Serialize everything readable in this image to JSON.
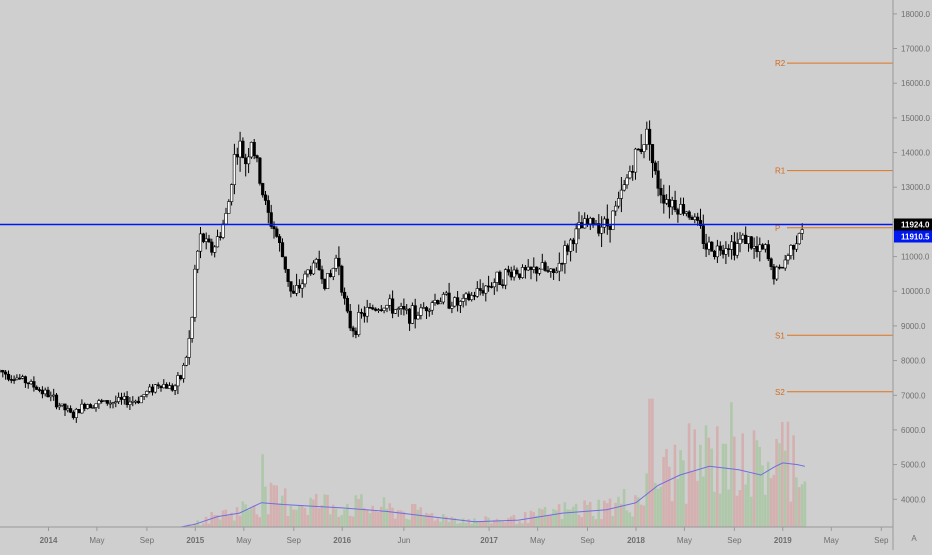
{
  "chart_data": {
    "type": "candlestick",
    "title": "",
    "xlabel": "",
    "ylabel": "",
    "ylim": [
      3200,
      18400
    ],
    "grid": false,
    "price_axis_ticks": [
      "4000.0",
      "5000.0",
      "6000.0",
      "7000.0",
      "8000.0",
      "9000.0",
      "10000.0",
      "11000.0",
      "12000.0",
      "13000.0",
      "14000.0",
      "15000.0",
      "16000.0",
      "17000.0",
      "18000.0"
    ],
    "price_axis_tick_values": [
      4000,
      5000,
      6000,
      7000,
      8000,
      9000,
      10000,
      11000,
      12000,
      13000,
      14000,
      15000,
      16000,
      17000,
      18000
    ],
    "x_range": [
      2013.67,
      2019.75
    ],
    "time_axis_labels": [
      {
        "label": "2014",
        "t": 2014.0
      },
      {
        "label": "May",
        "t": 2014.33
      },
      {
        "label": "Sep",
        "t": 2014.67
      },
      {
        "label": "2015",
        "t": 2015.0
      },
      {
        "label": "May",
        "t": 2015.33
      },
      {
        "label": "Sep",
        "t": 2015.67
      },
      {
        "label": "2016",
        "t": 2016.0
      },
      {
        "label": "Jun",
        "t": 2016.42
      },
      {
        "label": "2017",
        "t": 2017.0
      },
      {
        "label": "May",
        "t": 2017.33
      },
      {
        "label": "Sep",
        "t": 2017.67
      },
      {
        "label": "2018",
        "t": 2018.0
      },
      {
        "label": "May",
        "t": 2018.33
      },
      {
        "label": "Sep",
        "t": 2018.67
      },
      {
        "label": "2019",
        "t": 2019.0
      },
      {
        "label": "May",
        "t": 2019.33
      },
      {
        "label": "Sep",
        "t": 2019.67
      }
    ],
    "auto_scale_label": "A",
    "price_path": [
      [
        2013.67,
        7700
      ],
      [
        2013.85,
        7400
      ],
      [
        2014.0,
        7000
      ],
      [
        2014.08,
        6700
      ],
      [
        2014.17,
        6400
      ],
      [
        2014.25,
        6750
      ],
      [
        2014.4,
        6800
      ],
      [
        2014.6,
        6850
      ],
      [
        2014.75,
        7350
      ],
      [
        2014.85,
        7200
      ],
      [
        2014.9,
        7500
      ],
      [
        2014.95,
        8300
      ],
      [
        2014.98,
        9300
      ],
      [
        2015.0,
        10800
      ],
      [
        2015.04,
        11600
      ],
      [
        2015.08,
        11300
      ],
      [
        2015.12,
        11200
      ],
      [
        2015.17,
        11700
      ],
      [
        2015.22,
        12300
      ],
      [
        2015.26,
        13800
      ],
      [
        2015.3,
        14200
      ],
      [
        2015.34,
        13700
      ],
      [
        2015.38,
        14400
      ],
      [
        2015.42,
        13600
      ],
      [
        2015.46,
        12800
      ],
      [
        2015.5,
        12100
      ],
      [
        2015.54,
        11800
      ],
      [
        2015.58,
        11200
      ],
      [
        2015.62,
        10600
      ],
      [
        2015.66,
        9800
      ],
      [
        2015.72,
        10200
      ],
      [
        2015.77,
        10600
      ],
      [
        2015.83,
        10800
      ],
      [
        2015.88,
        10300
      ],
      [
        2015.92,
        10400
      ],
      [
        2015.97,
        11100
      ],
      [
        2016.0,
        10100
      ],
      [
        2016.04,
        9100
      ],
      [
        2016.08,
        8900
      ],
      [
        2016.13,
        9300
      ],
      [
        2016.2,
        9500
      ],
      [
        2016.3,
        9600
      ],
      [
        2016.4,
        9400
      ],
      [
        2016.5,
        9300
      ],
      [
        2016.6,
        9700
      ],
      [
        2016.7,
        9800
      ],
      [
        2016.8,
        9600
      ],
      [
        2016.9,
        9900
      ],
      [
        2017.0,
        10200
      ],
      [
        2017.08,
        10400
      ],
      [
        2017.17,
        10600
      ],
      [
        2017.27,
        10500
      ],
      [
        2017.35,
        10700
      ],
      [
        2017.43,
        10400
      ],
      [
        2017.5,
        11000
      ],
      [
        2017.58,
        11600
      ],
      [
        2017.65,
        11900
      ],
      [
        2017.72,
        12000
      ],
      [
        2017.8,
        11900
      ],
      [
        2017.88,
        12500
      ],
      [
        2017.96,
        13500
      ],
      [
        2018.02,
        14100
      ],
      [
        2018.06,
        14400
      ],
      [
        2018.09,
        14700
      ],
      [
        2018.12,
        13400
      ],
      [
        2018.16,
        13000
      ],
      [
        2018.2,
        12700
      ],
      [
        2018.25,
        12600
      ],
      [
        2018.3,
        12400
      ],
      [
        2018.36,
        12300
      ],
      [
        2018.42,
        11900
      ],
      [
        2018.48,
        11300
      ],
      [
        2018.55,
        11200
      ],
      [
        2018.62,
        11400
      ],
      [
        2018.68,
        11300
      ],
      [
        2018.74,
        11600
      ],
      [
        2018.82,
        11100
      ],
      [
        2018.88,
        11200
      ],
      [
        2018.93,
        10500
      ],
      [
        2018.98,
        10600
      ],
      [
        2019.03,
        11000
      ],
      [
        2019.08,
        11500
      ],
      [
        2019.12,
        11800
      ],
      [
        2019.15,
        11924
      ]
    ],
    "volume_path": [
      [
        2013.67,
        3200
      ],
      [
        2014.0,
        3200
      ],
      [
        2014.5,
        3200
      ],
      [
        2014.9,
        3200
      ],
      [
        2015.0,
        3280
      ],
      [
        2015.15,
        3500
      ],
      [
        2015.3,
        3600
      ],
      [
        2015.45,
        3900
      ],
      [
        2015.6,
        3850
      ],
      [
        2015.8,
        3800
      ],
      [
        2016.0,
        3750
      ],
      [
        2016.3,
        3650
      ],
      [
        2016.6,
        3500
      ],
      [
        2016.9,
        3350
      ],
      [
        2017.2,
        3400
      ],
      [
        2017.5,
        3600
      ],
      [
        2017.8,
        3700
      ],
      [
        2018.0,
        3900
      ],
      [
        2018.15,
        4400
      ],
      [
        2018.3,
        4700
      ],
      [
        2018.5,
        4950
      ],
      [
        2018.7,
        4850
      ],
      [
        2018.85,
        4700
      ],
      [
        2018.95,
        4950
      ],
      [
        2019.0,
        5050
      ],
      [
        2019.1,
        5000
      ],
      [
        2019.15,
        4950
      ]
    ],
    "volume_peaks": [
      [
        2015.45,
        5300
      ],
      [
        2018.1,
        6900
      ],
      [
        2018.65,
        6800
      ],
      [
        2018.72,
        5900
      ],
      [
        2018.6,
        5600
      ],
      [
        2018.83,
        5700
      ],
      [
        2019.02,
        5400
      ]
    ],
    "horizontal_line": {
      "value": 11924.0,
      "label": "11924.0",
      "color": "#0018f0"
    },
    "last_price_label": {
      "value": 11910.5,
      "label": "11910.5",
      "color": "#0018f0"
    },
    "pivot_levels": [
      {
        "name": "R2",
        "value": 16580
      },
      {
        "name": "R1",
        "value": 13480
      },
      {
        "name": "P",
        "value": 11830
      },
      {
        "name": "S1",
        "value": 8730
      },
      {
        "name": "S2",
        "value": 7100
      }
    ],
    "colors": {
      "background": "#cfcfcf",
      "candle": "#000000",
      "pivot": "#e0741e",
      "pivot_label": "#d26a1e",
      "volume_up": "#a9c7a3",
      "volume_down": "#d6aaaa",
      "volume_ma": "#6d6de0",
      "axis_text": "#6f6f6f"
    }
  }
}
